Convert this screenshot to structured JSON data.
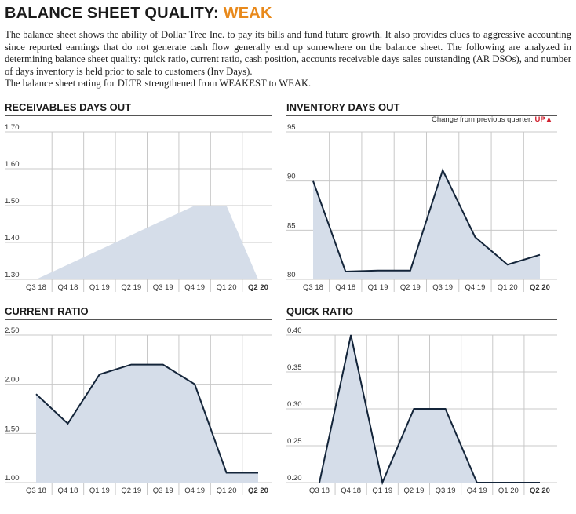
{
  "header": {
    "title_prefix": "BALANCE SHEET QUALITY: ",
    "rating": "WEAK",
    "rating_color": "#e8891b",
    "intro": "The balance sheet shows the ability of Dollar Tree Inc. to pay its bills and fund future growth. It also provides clues to aggressive accounting since reported earnings that do not generate cash flow generally end up somewhere on the balance sheet. The following are analyzed in determining balance sheet quality: quick ratio, current ratio, cash position, accounts receivable days sales outstanding (AR DSOs), and number of days inventory is held prior to sale to customers (Inv Days).",
    "note": "The balance sheet rating for DLTR strengthened from WEAKEST to WEAK."
  },
  "change_note": {
    "label": "Change from previous quarter: ",
    "value": "UP",
    "arrow": "▲"
  },
  "colors": {
    "fill": "#d5dde9",
    "line": "#14253a",
    "grid": "#c8c8c8"
  },
  "chart_data": [
    {
      "id": "receivables",
      "type": "area",
      "title": "RECEIVABLES DAYS OUT",
      "categories": [
        "Q3 18",
        "Q4 18",
        "Q1 19",
        "Q2 19",
        "Q3 19",
        "Q4 19",
        "Q1 20",
        "Q2 20"
      ],
      "values": [
        1.3,
        1.34,
        1.38,
        1.42,
        1.46,
        1.5,
        1.5,
        1.3
      ],
      "show_line": false,
      "ylim": [
        1.3,
        1.7
      ],
      "yticks": [
        "1.30",
        "1.40",
        "1.50",
        "1.60",
        "1.70"
      ],
      "grid": true
    },
    {
      "id": "inventory",
      "type": "area",
      "title": "INVENTORY DAYS OUT",
      "categories": [
        "Q3 18",
        "Q4 18",
        "Q1 19",
        "Q2 19",
        "Q3 19",
        "Q4 19",
        "Q1 20",
        "Q2 20"
      ],
      "values": [
        90.0,
        80.8,
        80.9,
        80.9,
        91.1,
        84.3,
        81.5,
        82.5
      ],
      "show_line": true,
      "ylim": [
        80,
        95
      ],
      "yticks": [
        "80",
        "85",
        "90",
        "95"
      ],
      "grid": true
    },
    {
      "id": "current",
      "type": "area",
      "title": "CURRENT RATIO",
      "categories": [
        "Q3 18",
        "Q4 18",
        "Q1 19",
        "Q2 19",
        "Q3 19",
        "Q4 19",
        "Q1 20",
        "Q2 20"
      ],
      "values": [
        1.9,
        1.6,
        2.1,
        2.2,
        2.2,
        2.0,
        1.1,
        1.1
      ],
      "show_line": true,
      "ylim": [
        1.0,
        2.5
      ],
      "yticks": [
        "1.00",
        "1.50",
        "2.00",
        "2.50"
      ],
      "grid": true
    },
    {
      "id": "quick",
      "type": "area",
      "title": "QUICK RATIO",
      "categories": [
        "Q3 18",
        "Q4 18",
        "Q1 19",
        "Q2 19",
        "Q3 19",
        "Q4 19",
        "Q1 20",
        "Q2 20"
      ],
      "values": [
        0.2,
        0.4,
        0.2,
        0.3,
        0.3,
        0.2,
        0.2,
        0.2
      ],
      "show_line": true,
      "ylim": [
        0.2,
        0.4
      ],
      "yticks": [
        "0.20",
        "0.25",
        "0.30",
        "0.35",
        "0.40"
      ],
      "grid": true
    }
  ]
}
